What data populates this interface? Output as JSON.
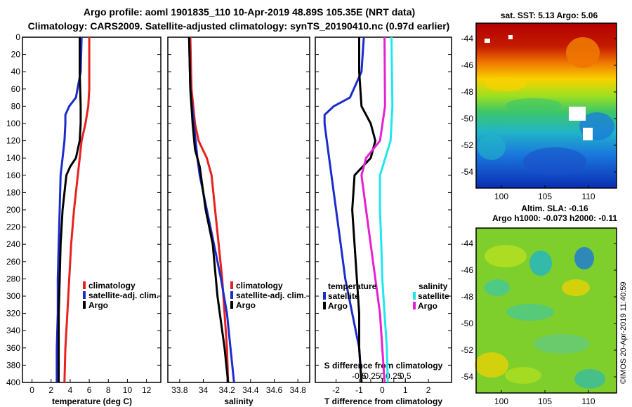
{
  "header": {
    "title_line1": "Argo profile: aoml 1901835_110 10-Apr-2019 48.89S 105.35E (NRT data)",
    "title_line2": "Climatology: CARS2009. Satellite-adjusted climatology: synTS_20190410.nc (0.97d earlier)"
  },
  "colors": {
    "climatology": "#e8201e",
    "satellite": "#1a2ccc",
    "argo": "#000000",
    "sal_satellite": "#22e6ee",
    "sal_argo": "#e620d2"
  },
  "chart_data": [
    {
      "type": "line",
      "id": "temperature",
      "xlabel": "temperature (deg C)",
      "ylabel": "",
      "xlim": [
        -1,
        13.5
      ],
      "ylim": [
        400,
        0
      ],
      "xticks": [
        "0",
        "2",
        "4",
        "6",
        "8",
        "10",
        "12"
      ],
      "yticks": [
        "0",
        "20",
        "40",
        "60",
        "80",
        "100",
        "120",
        "140",
        "160",
        "180",
        "200",
        "220",
        "240",
        "260",
        "280",
        "300",
        "320",
        "340",
        "360",
        "380",
        "400"
      ],
      "legend": [
        "climatology",
        "satellite-adj. clim.",
        "Argo"
      ],
      "series": [
        {
          "name": "climatology",
          "color": "#e8201e",
          "depth": [
            0,
            60,
            80,
            100,
            120,
            160,
            200,
            240,
            280,
            320,
            360,
            400
          ],
          "values": [
            6.0,
            6.0,
            5.9,
            5.6,
            5.2,
            4.8,
            4.4,
            4.1,
            3.9,
            3.7,
            3.5,
            3.4
          ]
        },
        {
          "name": "satellite-adj. clim.",
          "color": "#1a2ccc",
          "depth": [
            0,
            40,
            70,
            80,
            90,
            100,
            120,
            140,
            160,
            200,
            240,
            280,
            320,
            360,
            400
          ],
          "values": [
            5.2,
            5.1,
            4.6,
            3.9,
            3.5,
            3.5,
            3.4,
            3.2,
            3.0,
            2.9,
            2.8,
            2.7,
            2.7,
            2.6,
            2.6
          ]
        },
        {
          "name": "Argo",
          "color": "#000000",
          "depth": [
            0,
            40,
            80,
            100,
            120,
            140,
            150,
            160,
            200,
            240,
            280,
            320,
            360,
            400
          ],
          "values": [
            5.0,
            5.0,
            5.1,
            5.1,
            5.0,
            4.6,
            4.0,
            3.6,
            3.2,
            3.0,
            2.9,
            2.8,
            2.8,
            2.8
          ]
        }
      ]
    },
    {
      "type": "line",
      "id": "salinity",
      "xlabel": "salinity",
      "ylabel": "",
      "xlim": [
        33.7,
        34.9
      ],
      "ylim": [
        400,
        0
      ],
      "xticks": [
        "33.8",
        "34",
        "34.2",
        "34.4",
        "34.6",
        "34.8"
      ],
      "legend": [
        "climatology",
        "satellite-adj. clim.",
        "Argo"
      ],
      "series": [
        {
          "name": "climatology",
          "color": "#e8201e",
          "depth": [
            0,
            60,
            100,
            120,
            140,
            160,
            200,
            240,
            280,
            320,
            360,
            400
          ],
          "values": [
            33.89,
            33.9,
            33.93,
            33.96,
            34.03,
            34.07,
            34.1,
            34.13,
            34.16,
            34.18,
            34.2,
            34.21
          ]
        },
        {
          "name": "satellite-adj. clim.",
          "color": "#1a2ccc",
          "depth": [
            0,
            60,
            100,
            140,
            160,
            200,
            240,
            280,
            320,
            360,
            400
          ],
          "values": [
            33.88,
            33.89,
            33.92,
            33.95,
            33.97,
            34.03,
            34.09,
            34.15,
            34.2,
            34.23,
            34.26
          ]
        },
        {
          "name": "Argo",
          "color": "#000000",
          "depth": [
            0,
            60,
            100,
            130,
            150,
            170,
            200,
            240,
            270,
            300,
            330,
            360,
            400
          ],
          "values": [
            33.88,
            33.89,
            33.91,
            33.93,
            33.97,
            33.99,
            34.02,
            34.08,
            34.1,
            34.12,
            34.15,
            34.18,
            34.21
          ]
        }
      ]
    },
    {
      "type": "line",
      "id": "difference",
      "xlabel": "T difference from climatology",
      "x2label": "S difference from climatology",
      "xlim": [
        -2.9,
        3.0
      ],
      "ylim": [
        400,
        0
      ],
      "xticks": [
        "-2",
        "-1",
        "0",
        "1",
        "2"
      ],
      "x2ticks": [
        "-0.5",
        "-0.25",
        "0",
        "0.25",
        "0.5"
      ],
      "legend_temperature_title": "temperature",
      "legend_salinity_title": "salinity",
      "legend": [
        "satellite",
        "Argo",
        "satellite",
        "Argo"
      ],
      "series": [
        {
          "name": "satellite",
          "group": "temperature",
          "color": "#1a2ccc",
          "depth": [
            0,
            40,
            70,
            80,
            90,
            100,
            120,
            160,
            200,
            240,
            280,
            320,
            360,
            400
          ],
          "values": [
            -0.8,
            -0.9,
            -1.4,
            -2.1,
            -2.5,
            -2.5,
            -2.4,
            -2.2,
            -2.0,
            -1.8,
            -1.6,
            -1.3,
            -1.0,
            -0.9
          ]
        },
        {
          "name": "Argo",
          "group": "temperature",
          "color": "#000000",
          "depth": [
            0,
            40,
            80,
            100,
            120,
            140,
            160,
            200,
            240,
            280,
            320,
            360,
            400
          ],
          "values": [
            -1.0,
            -1.0,
            -0.9,
            -0.5,
            -0.3,
            -0.5,
            -1.2,
            -1.3,
            -1.2,
            -1.1,
            -1.0,
            -1.0,
            -0.9
          ]
        },
        {
          "name": "satellite",
          "group": "salinity",
          "color": "#22e6ee",
          "depth": [
            0,
            80,
            120,
            160,
            200,
            240,
            280,
            320,
            360,
            400
          ],
          "values": [
            0.2,
            0.22,
            0.18,
            -0.05,
            -0.05,
            -0.02,
            0.0,
            0.05,
            0.1,
            0.12
          ]
        },
        {
          "name": "Argo",
          "group": "salinity",
          "color": "#e620d2",
          "depth": [
            0,
            80,
            120,
            140,
            160,
            200,
            240,
            280,
            320,
            360,
            400
          ],
          "values": [
            0.05,
            0.06,
            -0.05,
            -0.35,
            -0.45,
            -0.35,
            -0.25,
            -0.15,
            -0.05,
            0.0,
            0.05
          ]
        }
      ]
    },
    {
      "type": "heatmap",
      "id": "sst-map",
      "title": "sat. SST: 5.13 Argo: 5.06",
      "yticks": [
        "-44",
        "-46",
        "-48",
        "-50",
        "-52",
        "-54"
      ],
      "xticks": [
        "100",
        "105",
        "110"
      ]
    },
    {
      "type": "heatmap",
      "id": "sla-map",
      "title_line1": "Altim. SLA: -0.16",
      "title_line2": "Argo h1000: -0.073 h2000: -0.11",
      "yticks": [
        "-44",
        "-46",
        "-48",
        "-50",
        "-52",
        "-54"
      ],
      "xticks": [
        "100",
        "105",
        "110"
      ]
    }
  ],
  "stamp": "©IMOS 20-Apr-2019 11:40:59"
}
